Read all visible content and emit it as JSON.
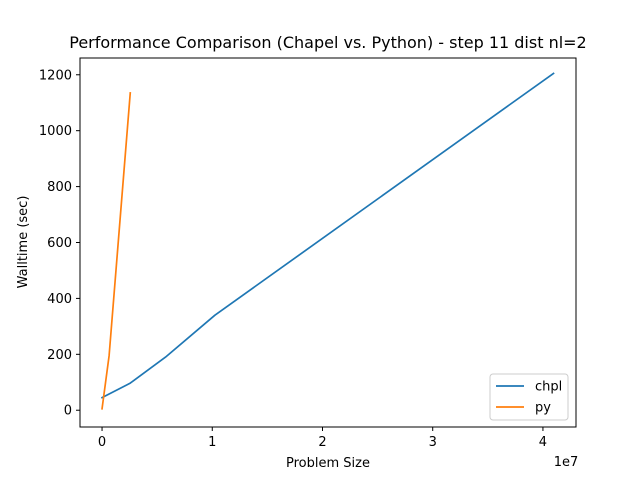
{
  "chart_data": {
    "type": "line",
    "title": "Performance Comparison (Chapel vs. Python) - step 11 dist nl=2",
    "xlabel": "Problem Size",
    "ylabel": "Walltime (sec)",
    "x_offset_text": "1e7",
    "x_scale": 10000000,
    "xlim": [
      -2000000,
      43000000
    ],
    "ylim": [
      -60,
      1260
    ],
    "x_ticks": [
      0,
      10000000,
      20000000,
      30000000,
      40000000
    ],
    "x_tick_labels": [
      "0",
      "1",
      "2",
      "3",
      "4"
    ],
    "y_ticks": [
      0,
      200,
      400,
      600,
      800,
      1000,
      1200
    ],
    "y_tick_labels": [
      "0",
      "200",
      "400",
      "600",
      "800",
      "1000",
      "1200"
    ],
    "grid": false,
    "legend_position": "lower-right",
    "series": [
      {
        "name": "chpl",
        "color": "#1f77b4",
        "x": [
          0,
          2560000,
          5760000,
          10240000,
          40960000
        ],
        "y": [
          45,
          97,
          190,
          340,
          1205
        ]
      },
      {
        "name": "py",
        "color": "#ff7f0e",
        "x": [
          0,
          640000,
          2560000
        ],
        "y": [
          5,
          195,
          1135
        ]
      }
    ]
  }
}
